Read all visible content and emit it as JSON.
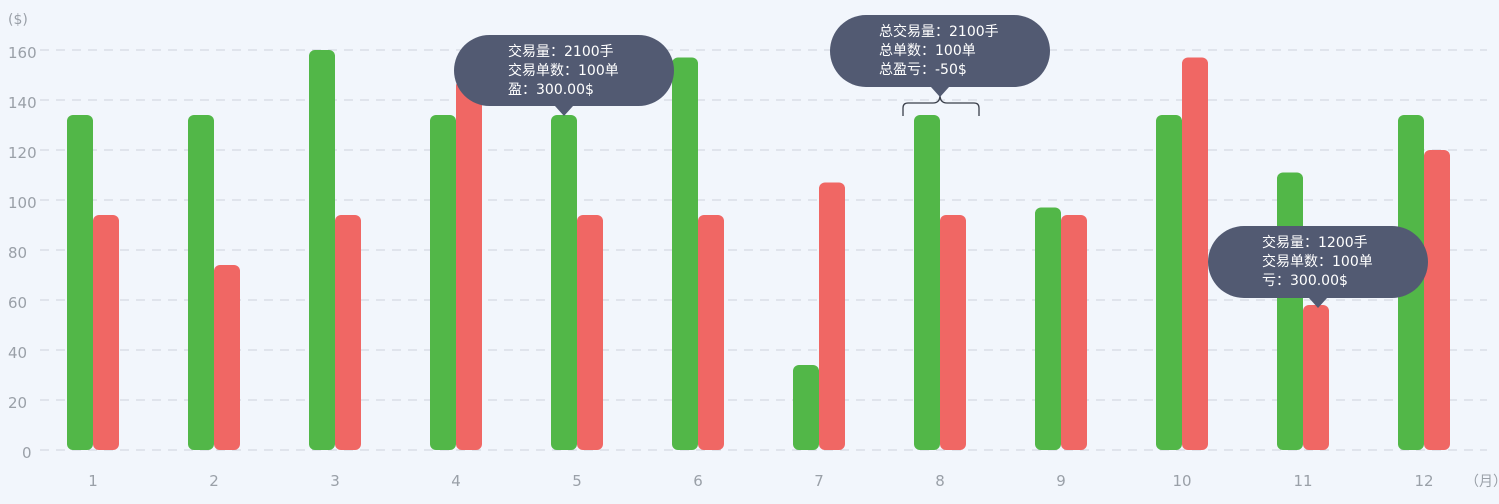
{
  "chart_data": {
    "type": "bar",
    "y_unit": "($)",
    "x_unit": "（月）",
    "categories": [
      "1",
      "2",
      "3",
      "4",
      "5",
      "6",
      "7",
      "8",
      "9",
      "10",
      "11",
      "12"
    ],
    "ylim": [
      0,
      160
    ],
    "yticks": [
      0,
      20,
      40,
      60,
      80,
      100,
      120,
      140,
      160
    ],
    "grid": true,
    "colors": {
      "green": "#52b748",
      "red": "#f06764"
    },
    "series": [
      {
        "values": [
          134,
          134,
          160,
          134,
          134,
          157,
          34,
          134,
          97,
          134,
          111,
          134
        ],
        "color": "#52b748"
      },
      {
        "values": [
          94,
          74,
          94,
          148,
          94,
          94,
          107,
          94,
          94,
          157,
          58,
          120
        ],
        "color": "#f06764"
      }
    ]
  },
  "tooltips": [
    {
      "lines": [
        "交易量：2100手",
        "交易单数：100单",
        "盈：300.00$"
      ]
    },
    {
      "lines": [
        "总交易量：2100手",
        "总单数：100单",
        "总盈亏：-50$"
      ]
    },
    {
      "lines": [
        "交易量：1200手",
        "交易单数：100单",
        "亏：300.00$"
      ]
    }
  ]
}
